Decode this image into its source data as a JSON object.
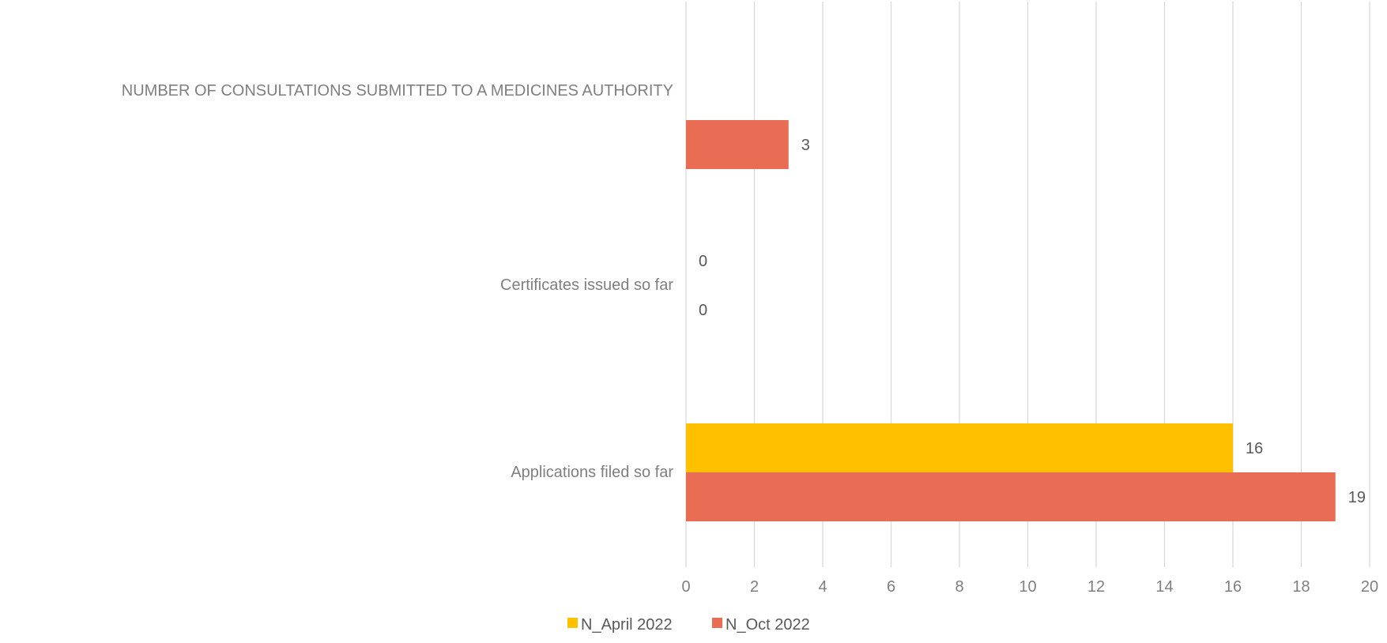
{
  "chart_data": {
    "type": "bar",
    "orientation": "horizontal",
    "categories": [
      "NUMBER OF CONSULTATIONS SUBMITTED TO A MEDICINES AUTHORITY",
      "Certificates issued so far",
      "Applications filed so far"
    ],
    "series": [
      {
        "name": "N_April 2022",
        "color": "#FFC000",
        "values": [
          null,
          0,
          16
        ]
      },
      {
        "name": "N_Oct 2022",
        "color": "#E96C54",
        "values": [
          3,
          0,
          19
        ]
      }
    ],
    "xlim": [
      0,
      20
    ],
    "xticks": [
      0,
      2,
      4,
      6,
      8,
      10,
      12,
      14,
      16,
      18,
      20
    ],
    "grid": true,
    "legend_position": "bottom",
    "data_labels": true
  }
}
